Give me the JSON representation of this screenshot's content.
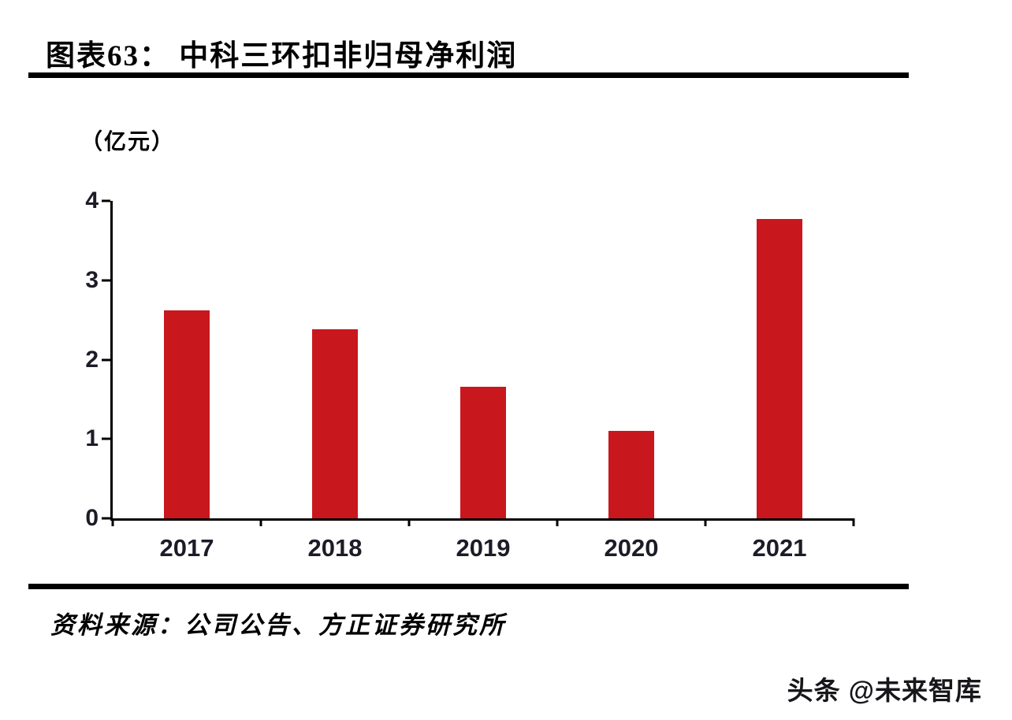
{
  "page": {
    "title": "图表63： 中科三环扣非归母净利润",
    "unit_label": "（亿元）",
    "source": "资料来源：公司公告、方正证券研究所",
    "watermark": "头条 @未来智库"
  },
  "colors": {
    "bar": "#c9171e",
    "axis": "#000000",
    "tick_text": "#1c1c28"
  },
  "chart_data": {
    "type": "bar",
    "title": "中科三环扣非归母净利润",
    "categories": [
      "2017",
      "2018",
      "2019",
      "2020",
      "2021"
    ],
    "values": [
      2.62,
      2.38,
      1.66,
      1.1,
      3.77
    ],
    "xlabel": "",
    "ylabel": "（亿元）",
    "ylim": [
      0,
      4
    ],
    "yticks": [
      0,
      1,
      2,
      3,
      4
    ],
    "grid": false,
    "legend": "none"
  }
}
